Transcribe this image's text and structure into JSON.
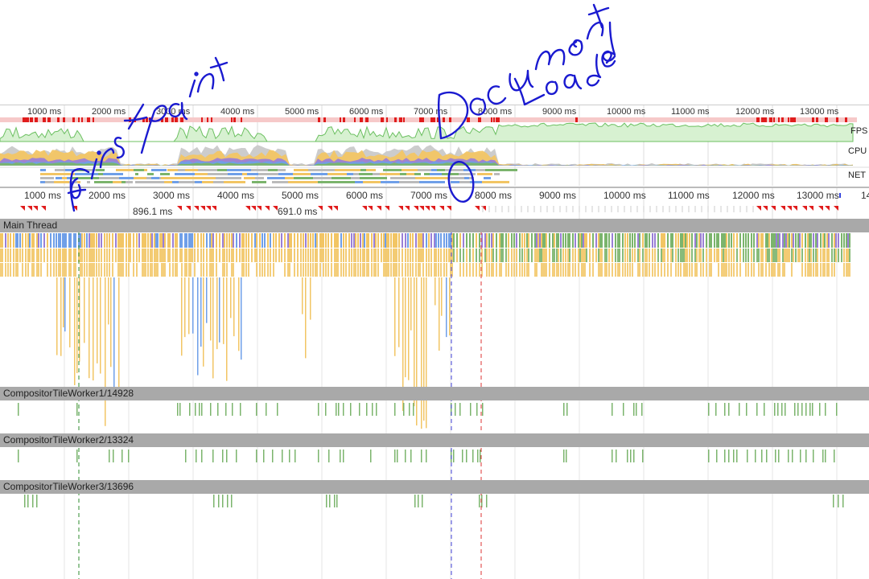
{
  "overview": {
    "ticks": [
      "1000 ms",
      "2000 ms",
      "3000 ms",
      "4000 ms",
      "5000 ms",
      "6000 ms",
      "7000 ms",
      "8000 ms",
      "9000 ms",
      "10000 ms",
      "11000 ms",
      "12000 ms",
      "13000 ms"
    ],
    "labels": {
      "fps": "FPS",
      "cpu": "CPU",
      "net": "NET"
    }
  },
  "ruler": {
    "ticks": [
      "1000 ms",
      "2000 ms",
      "3000 ms",
      "4000 ms",
      "5000 ms",
      "6000 ms",
      "7000 ms",
      "8000 ms",
      "9000 ms",
      "10000 ms",
      "11000 ms",
      "12000 ms",
      "13000 ms",
      "14"
    ]
  },
  "intervals": [
    "896.1 ms",
    "691.0 ms"
  ],
  "threads": [
    {
      "name": "Main Thread"
    },
    {
      "name": "CompositorTileWorker1/14928"
    },
    {
      "name": "CompositorTileWorker2/13324"
    },
    {
      "name": "CompositorTileWorker3/13696"
    }
  ],
  "colors": {
    "script": "#f2c564",
    "render": "#9a7fd6",
    "paint": "#7bb46c",
    "loading": "#6f9fe8",
    "fps": "#a6dc9b",
    "long_task": "#e01c1c",
    "header": "#a9a9a9",
    "ink": "#1a1ad0"
  },
  "annotations": [
    "First paint",
    "Document Loaded"
  ]
}
